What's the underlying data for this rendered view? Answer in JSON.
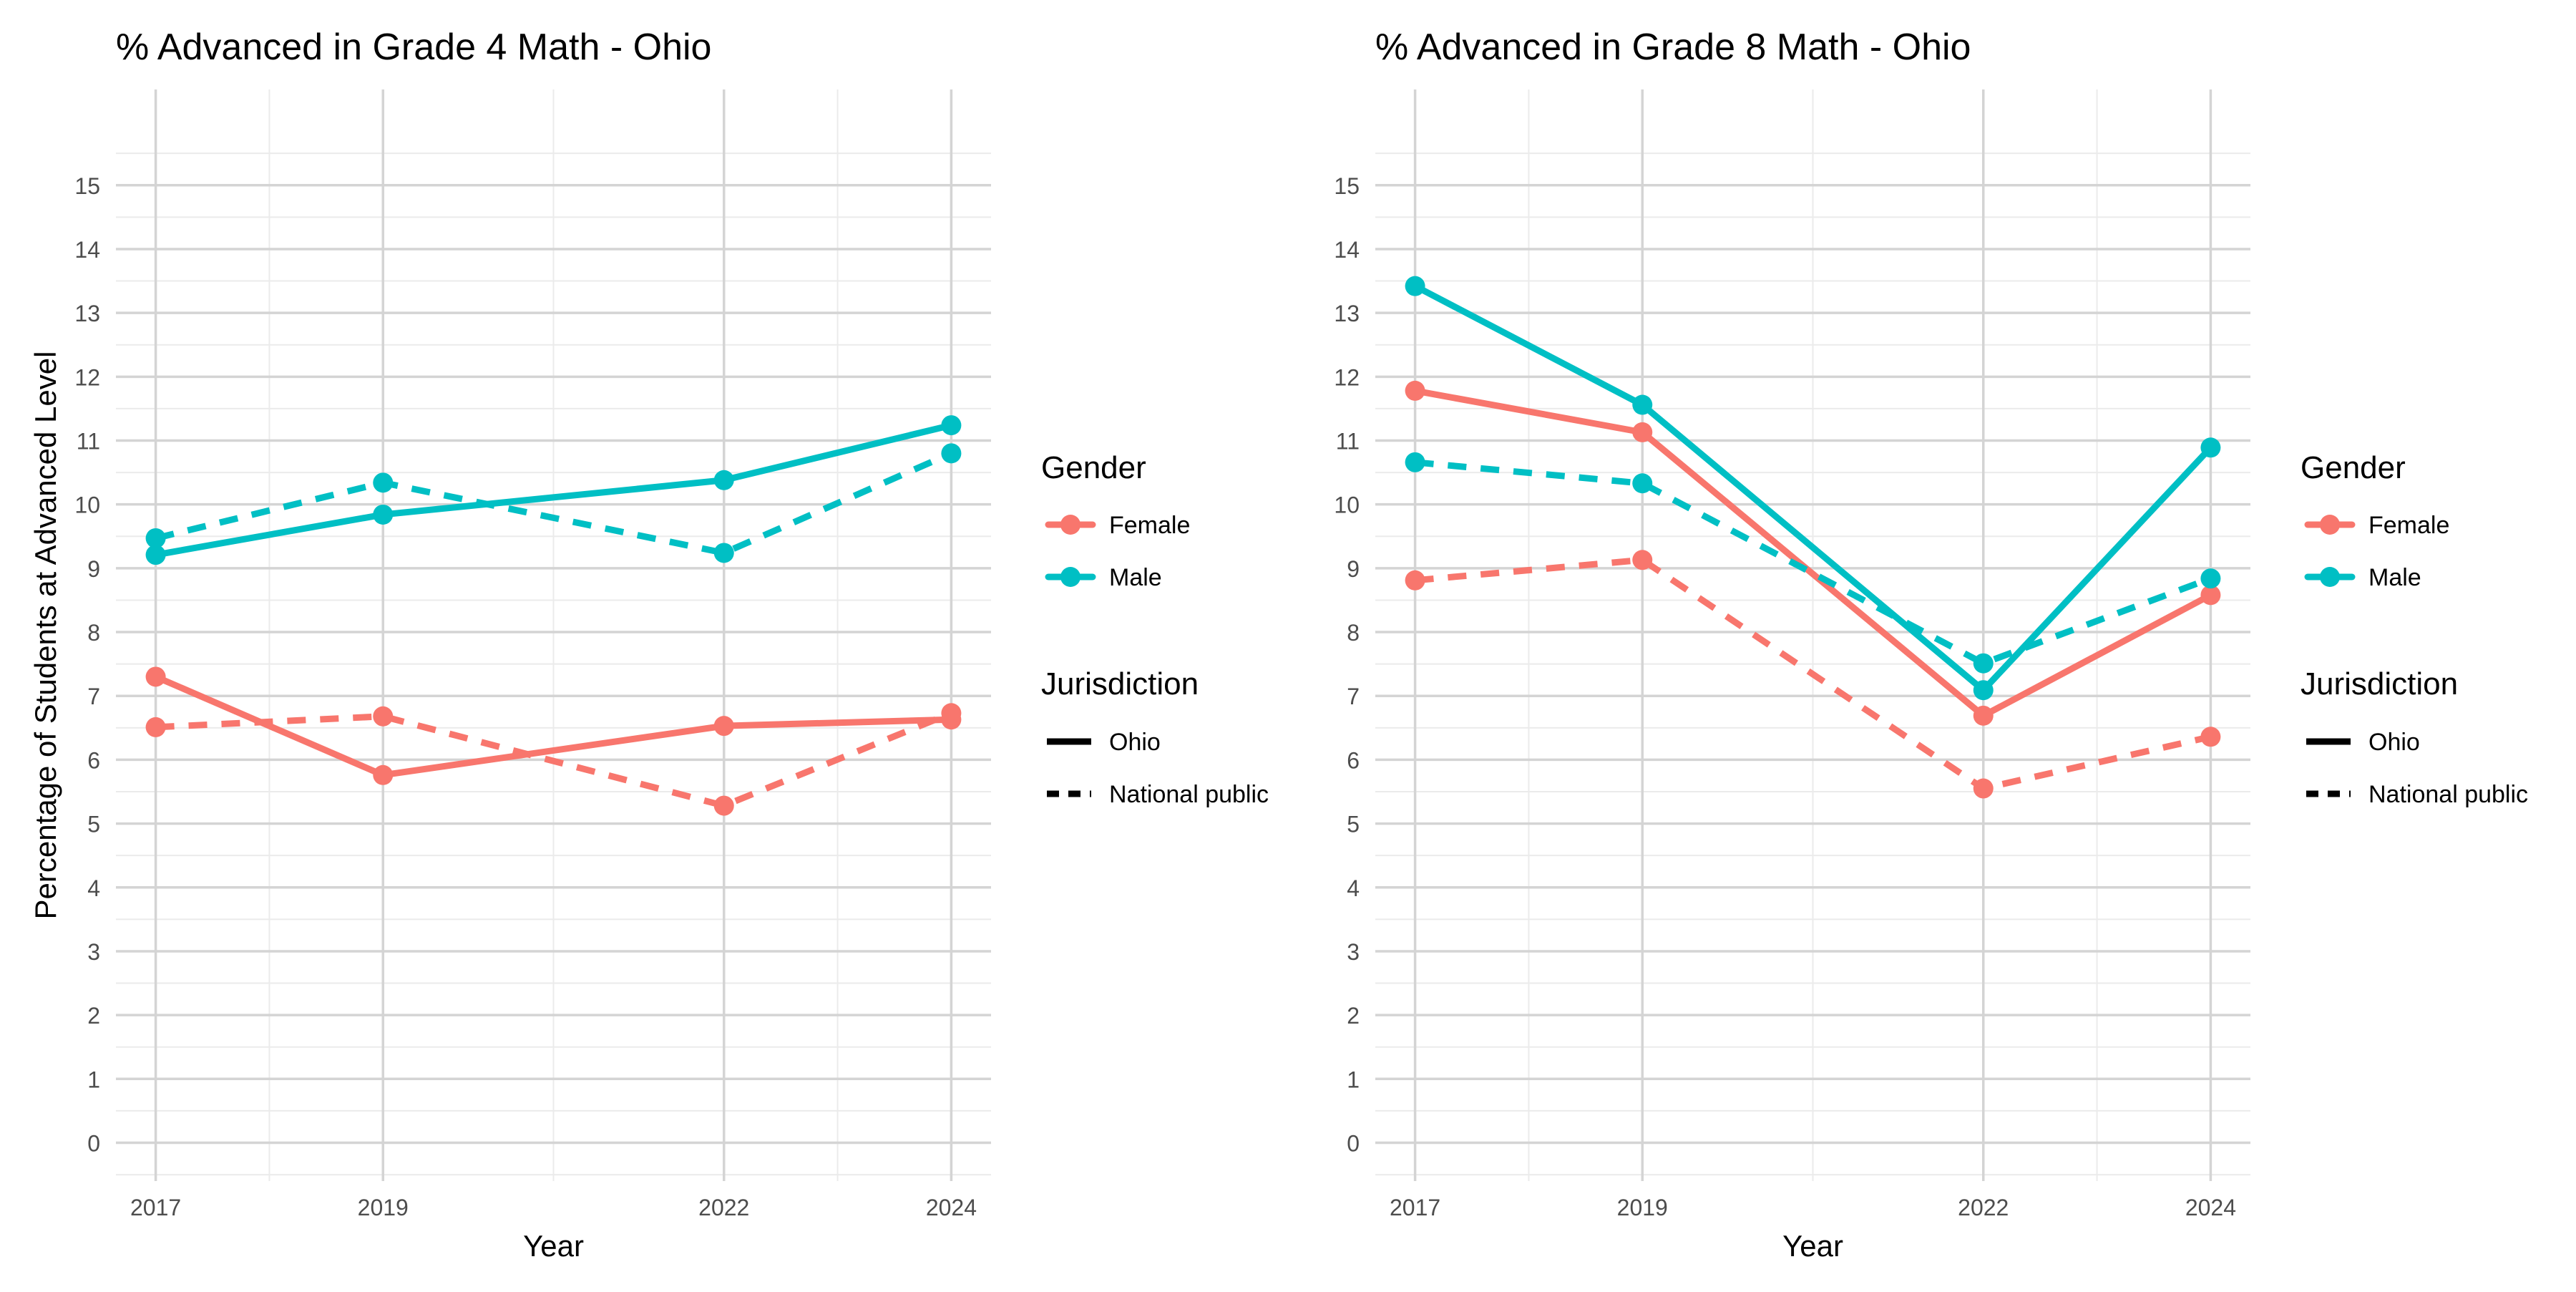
{
  "ylabel": "Percentage of Students at Advanced Level",
  "colors": {
    "Female": "#F8766D",
    "Male": "#00BFC4",
    "grid_major": "#d4d4d4",
    "grid_minor": "#ebebeb",
    "text": "#4d4d4d",
    "title": "#000000"
  },
  "legend": {
    "gender_title": "Gender",
    "gender_items": [
      {
        "label": "Female",
        "color": "#F8766D"
      },
      {
        "label": "Male",
        "color": "#00BFC4"
      }
    ],
    "jurisdiction_title": "Jurisdiction",
    "jurisdiction_items": [
      {
        "label": "Ohio",
        "linetype": "solid"
      },
      {
        "label": "National public",
        "linetype": "dashed"
      }
    ]
  },
  "chart_data": [
    {
      "type": "line",
      "title": "% Advanced in Grade 4 Math - Ohio",
      "xlabel": "Year",
      "ylabel": "Percentage of Students at Advanced Level",
      "x": [
        2017,
        2019,
        2022,
        2024
      ],
      "xlim": [
        2016.65,
        2024.35
      ],
      "ylim": [
        -0.6,
        16.5
      ],
      "yticks": [
        0,
        1,
        2,
        3,
        4,
        5,
        6,
        7,
        8,
        9,
        10,
        11,
        12,
        13,
        14,
        15
      ],
      "grid": true,
      "legend_position": "right",
      "series": [
        {
          "name": "Female",
          "gender": "Female",
          "jurisdiction": "Ohio",
          "values": [
            7.3,
            5.76,
            6.53,
            6.63
          ]
        },
        {
          "name": "Female",
          "gender": "Female",
          "jurisdiction": "National public",
          "values": [
            6.51,
            6.68,
            5.28,
            6.73
          ]
        },
        {
          "name": "Male",
          "gender": "Male",
          "jurisdiction": "Ohio",
          "values": [
            9.21,
            9.84,
            10.38,
            11.24
          ]
        },
        {
          "name": "Male",
          "gender": "Male",
          "jurisdiction": "National public",
          "values": [
            9.47,
            10.34,
            9.24,
            10.8
          ]
        }
      ]
    },
    {
      "type": "line",
      "title": "% Advanced in Grade 8 Math - Ohio",
      "xlabel": "Year",
      "ylabel": "",
      "x": [
        2017,
        2019,
        2022,
        2024
      ],
      "xlim": [
        2016.65,
        2024.35
      ],
      "ylim": [
        -0.6,
        16.5
      ],
      "yticks": [
        0,
        1,
        2,
        3,
        4,
        5,
        6,
        7,
        8,
        9,
        10,
        11,
        12,
        13,
        14,
        15
      ],
      "grid": true,
      "legend_position": "right",
      "series": [
        {
          "name": "Female",
          "gender": "Female",
          "jurisdiction": "Ohio",
          "values": [
            11.78,
            11.13,
            6.69,
            8.58
          ]
        },
        {
          "name": "Female",
          "gender": "Female",
          "jurisdiction": "National public",
          "values": [
            8.81,
            9.13,
            5.55,
            6.36
          ]
        },
        {
          "name": "Male",
          "gender": "Male",
          "jurisdiction": "Ohio",
          "values": [
            13.42,
            11.56,
            7.09,
            10.89
          ]
        },
        {
          "name": "Male",
          "gender": "Male",
          "jurisdiction": "National public",
          "values": [
            10.66,
            10.33,
            7.51,
            8.84
          ]
        }
      ]
    }
  ]
}
